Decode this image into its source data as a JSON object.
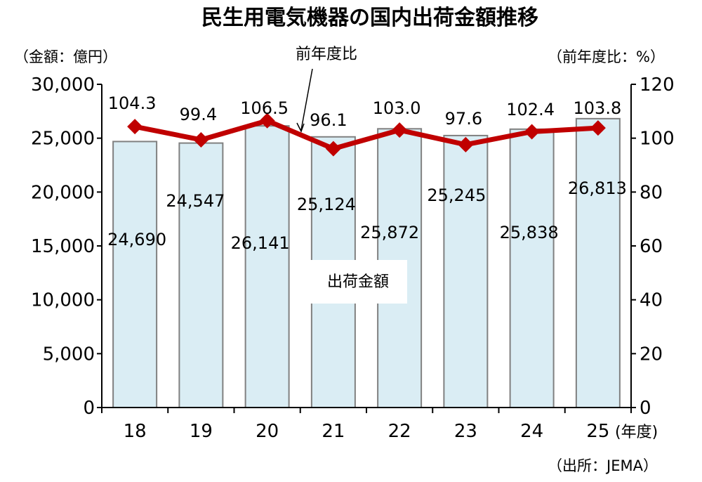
{
  "chart_data": {
    "type": "bar+line",
    "title": "民生用電気機器の国内出荷金額推移",
    "ylabel_left": "（金額：億円）",
    "ylabel_right": "（前年度比：%）",
    "xlabel": "(年度)",
    "source": "（出所：JEMA）",
    "categories": [
      "18",
      "19",
      "20",
      "21",
      "22",
      "23",
      "24",
      "25"
    ],
    "ylim_left": [
      0,
      30000
    ],
    "ylim_right": [
      0,
      120
    ],
    "left_ticks": [
      "0",
      "5,000",
      "10,000",
      "15,000",
      "20,000",
      "25,000",
      "30,000"
    ],
    "right_ticks": [
      "0",
      "20",
      "40",
      "60",
      "80",
      "100",
      "120"
    ],
    "series": [
      {
        "name": "出荷金額",
        "type": "bar",
        "axis": "left",
        "color": "#daedf4",
        "edge": "#808080",
        "values": [
          24690,
          24547,
          26141,
          25124,
          25872,
          25245,
          25838,
          26813
        ],
        "labels": [
          "24,690",
          "24,547",
          "26,141",
          "25,124",
          "25,872",
          "25,245",
          "25,838",
          "26,813"
        ]
      },
      {
        "name": "前年度比",
        "type": "line",
        "axis": "right",
        "color": "#c00000",
        "values": [
          104.3,
          99.4,
          106.5,
          96.1,
          103.0,
          97.6,
          102.4,
          103.8
        ],
        "labels": [
          "104.3",
          "99.4",
          "106.5",
          "96.1",
          "103.0",
          "97.6",
          "102.4",
          "103.8"
        ]
      }
    ],
    "grid": false
  }
}
